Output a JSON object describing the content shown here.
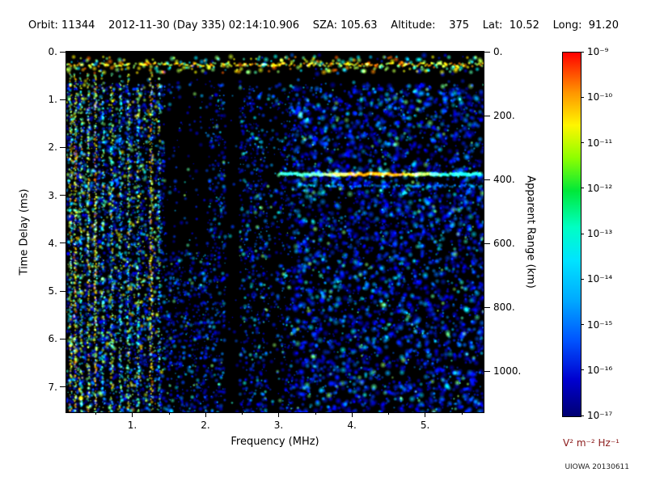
{
  "header": {
    "segments": [
      "Orbit: 11344",
      "2012-11-30 (Day 335) 02:14:10.906",
      "SZA: 105.63",
      "Altitude:",
      "375",
      "Lat:  10.52",
      "Long:  91.20"
    ]
  },
  "chart_data": {
    "type": "heatmap",
    "subtype": "radar-sounder-ionogram-spectrogram",
    "xlabel": "Frequency (MHz)",
    "ylabel_left": "Time Delay (ms)",
    "ylabel_right": "Apparent Range (km)",
    "xlim": [
      0.1,
      5.8
    ],
    "ylim": [
      0,
      7.53
    ],
    "x_ticks": [
      "1.",
      "2.",
      "3.",
      "4.",
      "5."
    ],
    "x_tick_values": [
      1,
      2,
      3,
      4,
      5
    ],
    "y_ticks": [
      "0.",
      "1.",
      "2.",
      "3.",
      "4.",
      "5.",
      "6.",
      "7."
    ],
    "y_tick_values": [
      0,
      1,
      2,
      3,
      4,
      5,
      6,
      7
    ],
    "right_ticks": [
      "0.",
      "200.",
      "400.",
      "600.",
      "800.",
      "1000."
    ],
    "right_tick_values": [
      0,
      200,
      400,
      600,
      800,
      1000
    ],
    "km_per_ms": 149.9,
    "colorbar": {
      "scale": "log",
      "unit": "V² m⁻² Hz⁻¹",
      "unit_color": "#8b1a1a",
      "labels": [
        "10⁻⁹",
        "10⁻¹⁰",
        "10⁻¹¹",
        "10⁻¹²",
        "10⁻¹³",
        "10⁻¹⁴",
        "10⁻¹⁵",
        "10⁻¹⁶",
        "10⁻¹⁷"
      ],
      "stops": [
        [
          "#ff0000",
          0
        ],
        [
          "#ff9500",
          0.11
        ],
        [
          "#fff600",
          0.2
        ],
        [
          "#8dff00",
          0.29
        ],
        [
          "#00e839",
          0.38
        ],
        [
          "#00ffc3",
          0.48
        ],
        [
          "#00e4ff",
          0.57
        ],
        [
          "#00aaff",
          0.68
        ],
        [
          "#0055ff",
          0.79
        ],
        [
          "#0000cf",
          0.9
        ],
        [
          "#000072",
          1
        ]
      ]
    },
    "features": {
      "noise": {
        "seed": 987654321,
        "p_low": 0.5,
        "p_mid": 0.34,
        "p_high": 0.3,
        "low_f_max": 1.4
      },
      "band": {
        "t0": 0.1,
        "t1": 0.44,
        "core_t": 0.27
      },
      "dark_regions": [
        {
          "f0": 1.45,
          "f1": 2.05,
          "t0": 0.7,
          "t1": 4.2,
          "factor": 0.22
        },
        {
          "f0": 2.28,
          "f1": 2.47,
          "t0": 0.0,
          "t1": 8.0,
          "factor": 0.06
        },
        {
          "f0": 2.84,
          "f1": 3.02,
          "t0": 1.2,
          "t1": 8.0,
          "factor": 0.4
        },
        {
          "f0": 0.0,
          "f1": 6.0,
          "t0": 0.48,
          "t1": 0.68,
          "factor": 0.15
        }
      ],
      "stripes": [
        {
          "f": 0.16,
          "w": 3,
          "d": 0.75,
          "v0": 0.35,
          "dv": 0.4
        },
        {
          "f": 0.22,
          "w": 3,
          "d": 0.85,
          "v0": 0.45,
          "dv": 0.35
        },
        {
          "f": 0.3,
          "w": 3,
          "d": 0.6,
          "v0": 0.3,
          "dv": 0.35
        },
        {
          "f": 0.4,
          "w": 3,
          "d": 0.7,
          "v0": 0.4,
          "dv": 0.35
        },
        {
          "f": 0.5,
          "w": 3,
          "d": 0.85,
          "v0": 0.45,
          "dv": 0.35
        },
        {
          "f": 0.6,
          "w": 3,
          "d": 0.6,
          "v0": 0.3,
          "dv": 0.3
        },
        {
          "f": 0.72,
          "w": 3,
          "d": 0.65,
          "v0": 0.35,
          "dv": 0.35
        },
        {
          "f": 0.84,
          "w": 3,
          "d": 0.55,
          "v0": 0.3,
          "dv": 0.3
        },
        {
          "f": 0.95,
          "w": 3,
          "d": 0.6,
          "v0": 0.32,
          "dv": 0.33
        },
        {
          "f": 1.08,
          "w": 3,
          "d": 0.55,
          "v0": 0.3,
          "dv": 0.3
        },
        {
          "f": 1.26,
          "w": 4,
          "d": 0.85,
          "v0": 0.45,
          "dv": 0.35
        },
        {
          "f": 1.37,
          "w": 3,
          "d": 0.5,
          "v0": 0.28,
          "dv": 0.3
        }
      ],
      "traces": [
        {
          "t": 2.56,
          "f0": 3.0,
          "f1": 5.78,
          "peak_f": 4.35,
          "v0": 0.34,
          "vpeak": 0.42,
          "r": 2.6
        },
        {
          "t": 2.8,
          "f0": 3.35,
          "f1": 5.78,
          "v0": 0.22,
          "dv": 0.18,
          "r": 1.8,
          "d": 0.75
        }
      ]
    },
    "credit": "UIOWA 20130611"
  }
}
